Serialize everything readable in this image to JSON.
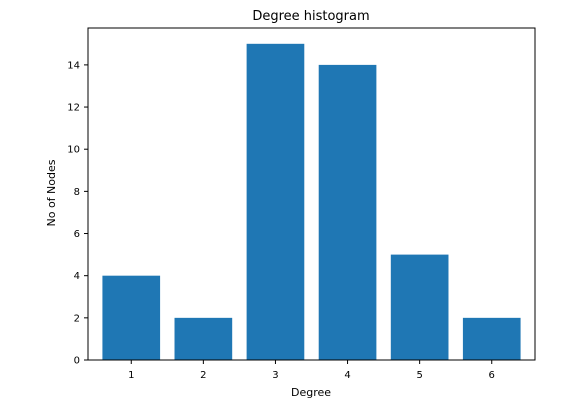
{
  "chart_data": {
    "type": "bar",
    "title": "Degree histogram",
    "xlabel": "Degree",
    "ylabel": "No of Nodes",
    "categories": [
      "1",
      "2",
      "3",
      "4",
      "5",
      "6"
    ],
    "values": [
      4,
      2,
      15,
      14,
      5,
      2
    ],
    "ylim": [
      0,
      15.75
    ],
    "yticks": [
      0,
      2,
      4,
      6,
      8,
      10,
      12,
      14
    ],
    "bar_color": "#1f77b4",
    "grid": false,
    "legend": "none"
  }
}
